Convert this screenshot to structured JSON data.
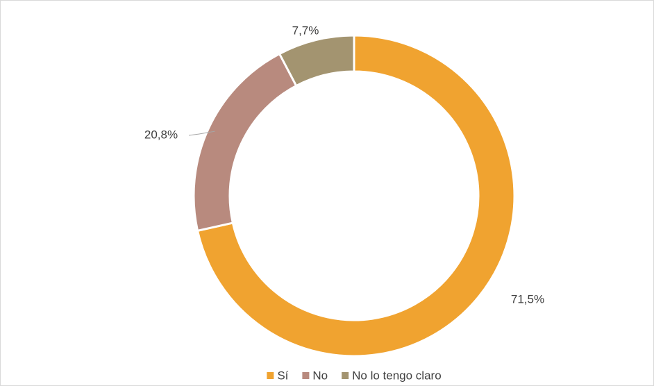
{
  "chart_data": {
    "type": "donut",
    "categories": [
      "Sí",
      "No",
      "No lo tengo claro"
    ],
    "values": [
      71.5,
      20.8,
      7.7
    ],
    "value_labels": [
      "71,5%",
      "20,8%",
      "7,7%"
    ],
    "colors": [
      "#f0a330",
      "#b88a7e",
      "#a39470"
    ],
    "legend": "bottom"
  }
}
